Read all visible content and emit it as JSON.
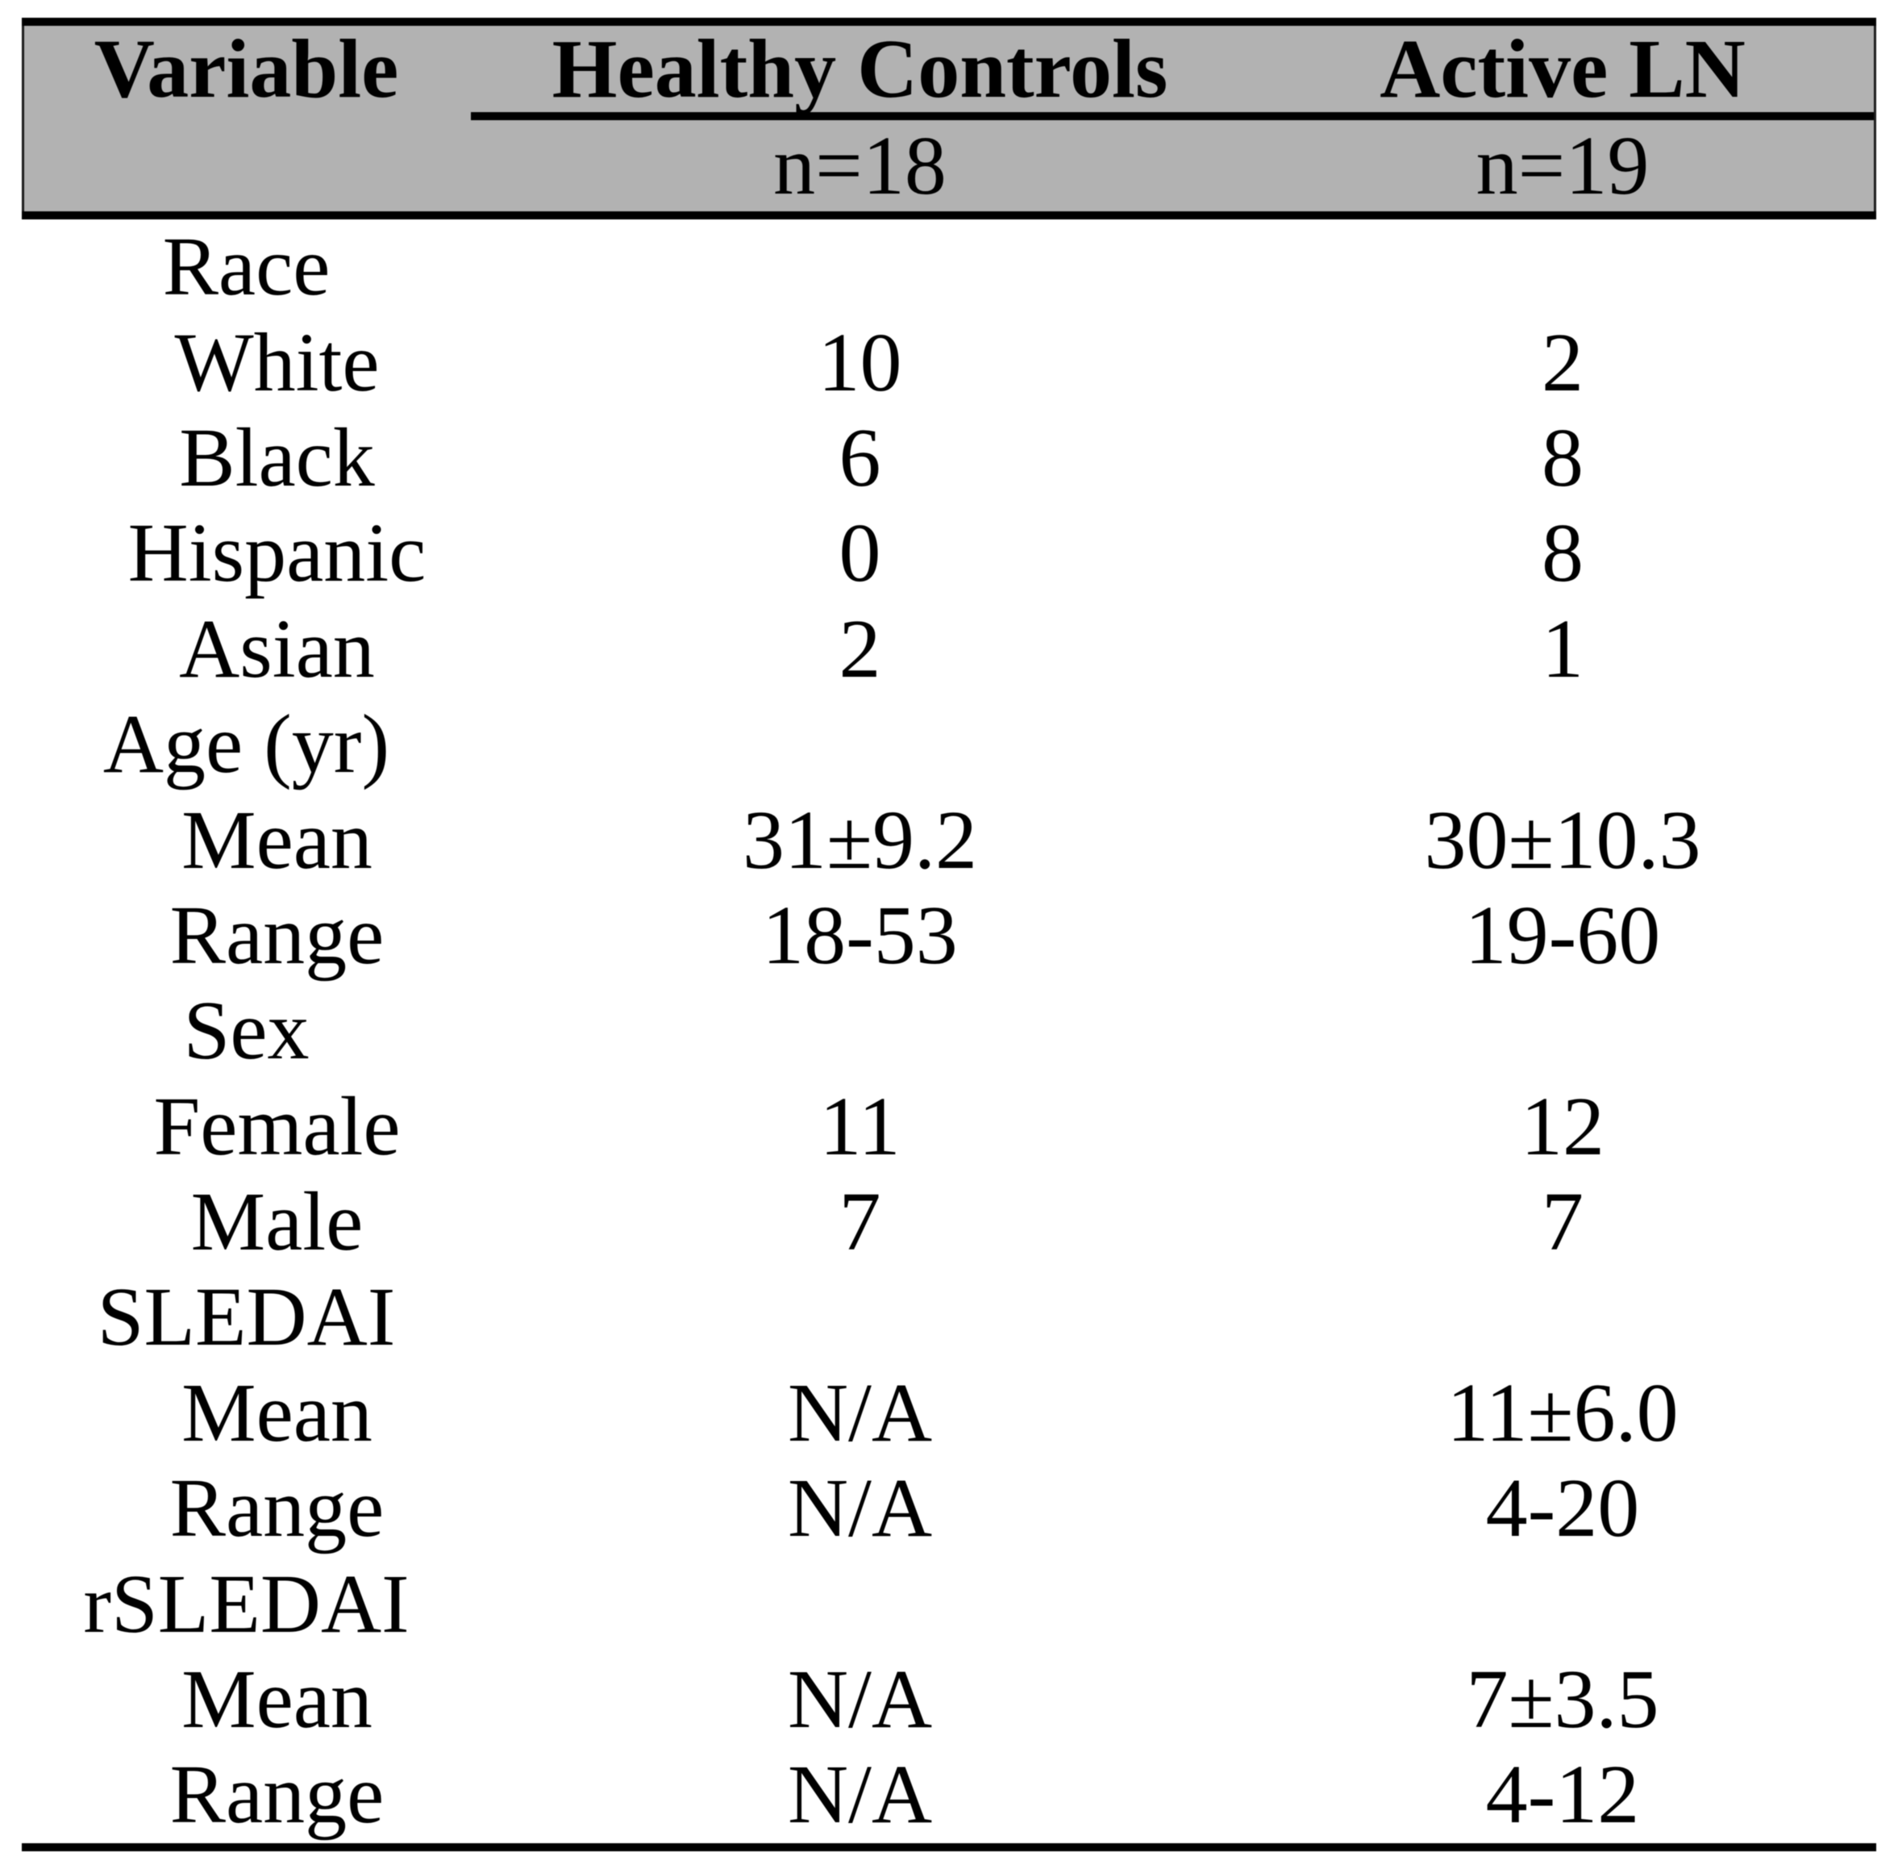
{
  "table": {
    "header": {
      "variable_label": "Variable",
      "healthy_controls": {
        "title": "Healthy Controls",
        "n": "n=18"
      },
      "active_ln": {
        "title": "Active LN",
        "n": "n=19"
      }
    },
    "rows": [
      {
        "label": "Race",
        "indent": false,
        "hc": "",
        "ln": ""
      },
      {
        "label": "White",
        "indent": true,
        "hc": "10",
        "ln": "2"
      },
      {
        "label": "Black",
        "indent": true,
        "hc": "6",
        "ln": "8"
      },
      {
        "label": "Hispanic",
        "indent": true,
        "hc": "0",
        "ln": "8"
      },
      {
        "label": "Asian",
        "indent": true,
        "hc": "2",
        "ln": "1"
      },
      {
        "label": "Age (yr)",
        "indent": false,
        "hc": "",
        "ln": ""
      },
      {
        "label": "Mean",
        "indent": true,
        "hc": "31±9.2",
        "ln": "30±10.3"
      },
      {
        "label": "Range",
        "indent": true,
        "hc": "18-53",
        "ln": "19-60"
      },
      {
        "label": "Sex",
        "indent": false,
        "hc": "",
        "ln": ""
      },
      {
        "label": "Female",
        "indent": true,
        "hc": "11",
        "ln": "12"
      },
      {
        "label": "Male",
        "indent": true,
        "hc": "7",
        "ln": "7"
      },
      {
        "label": "SLEDAI",
        "indent": false,
        "hc": "",
        "ln": ""
      },
      {
        "label": "Mean",
        "indent": true,
        "hc": "N/A",
        "ln": "11±6.0"
      },
      {
        "label": "Range",
        "indent": true,
        "hc": "N/A",
        "ln": "4-20"
      },
      {
        "label": "rSLEDAI",
        "indent": false,
        "hc": "",
        "ln": ""
      },
      {
        "label": "Mean",
        "indent": true,
        "hc": "N/A",
        "ln": "7±3.5"
      },
      {
        "label": "Range",
        "indent": true,
        "hc": "N/A",
        "ln": "4-12"
      }
    ],
    "colors": {
      "header_bg": "#b2b2b2",
      "rule": "#000000",
      "text": "#000000",
      "body_bg": "#ffffff"
    }
  }
}
